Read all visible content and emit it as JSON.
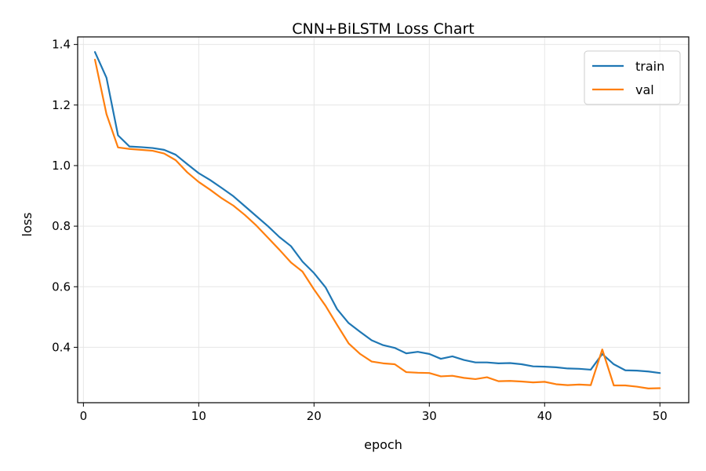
{
  "chart_data": {
    "type": "line",
    "title": "CNN+BiLSTM Loss Chart",
    "xlabel": "epoch",
    "ylabel": "loss",
    "xlim": [
      -0.5,
      52.5
    ],
    "ylim": [
      0.217,
      1.425
    ],
    "xticks": [
      0,
      10,
      20,
      30,
      40,
      50
    ],
    "yticks": [
      0.4,
      0.6,
      0.8,
      1.0,
      1.2,
      1.4
    ],
    "xtick_labels": [
      "0",
      "10",
      "20",
      "30",
      "40",
      "50"
    ],
    "ytick_labels": [
      "0.4",
      "0.6",
      "0.8",
      "1.0",
      "1.2",
      "1.4"
    ],
    "grid": true,
    "legend_position": "top-right",
    "x": [
      1,
      2,
      3,
      4,
      5,
      6,
      7,
      8,
      9,
      10,
      11,
      12,
      13,
      14,
      15,
      16,
      17,
      18,
      19,
      20,
      21,
      22,
      23,
      24,
      25,
      26,
      27,
      28,
      29,
      30,
      31,
      32,
      33,
      34,
      35,
      36,
      37,
      38,
      39,
      40,
      41,
      42,
      43,
      44,
      45,
      46,
      47,
      48,
      49,
      50
    ],
    "series": [
      {
        "name": "train",
        "color": "#1f77b4",
        "values": [
          1.375,
          1.29,
          1.1,
          1.063,
          1.061,
          1.058,
          1.052,
          1.036,
          1.005,
          0.975,
          0.952,
          0.926,
          0.899,
          0.866,
          0.833,
          0.8,
          0.764,
          0.734,
          0.683,
          0.645,
          0.598,
          0.526,
          0.48,
          0.451,
          0.423,
          0.407,
          0.398,
          0.38,
          0.385,
          0.378,
          0.362,
          0.37,
          0.358,
          0.35,
          0.35,
          0.347,
          0.348,
          0.344,
          0.337,
          0.336,
          0.334,
          0.33,
          0.329,
          0.326,
          0.378,
          0.344,
          0.324,
          0.323,
          0.32,
          0.315
        ]
      },
      {
        "name": "val",
        "color": "#ff7f0e",
        "values": [
          1.35,
          1.17,
          1.06,
          1.055,
          1.052,
          1.049,
          1.04,
          1.018,
          0.978,
          0.946,
          0.92,
          0.892,
          0.868,
          0.837,
          0.802,
          0.762,
          0.722,
          0.68,
          0.65,
          0.591,
          0.537,
          0.474,
          0.413,
          0.378,
          0.353,
          0.347,
          0.344,
          0.318,
          0.316,
          0.315,
          0.304,
          0.306,
          0.299,
          0.295,
          0.301,
          0.288,
          0.289,
          0.287,
          0.284,
          0.286,
          0.278,
          0.275,
          0.277,
          0.275,
          0.393,
          0.274,
          0.274,
          0.27,
          0.264,
          0.265
        ]
      }
    ]
  }
}
